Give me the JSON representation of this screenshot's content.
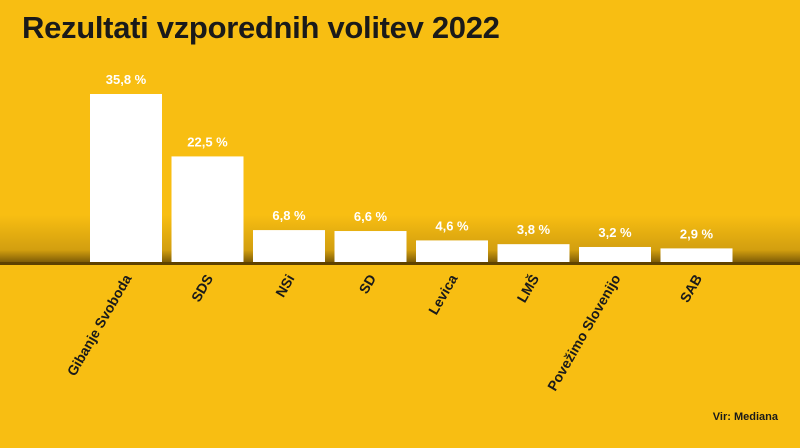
{
  "title": "Rezultati vzporednih volitev 2022",
  "source": "Vir: Mediana",
  "chart_data": {
    "type": "bar",
    "title": "Rezultati vzporednih volitev 2022",
    "categories": [
      "Gibanje Svoboda",
      "SDS",
      "NSi",
      "SD",
      "Levica",
      "LMŠ",
      "Povežimo Slovenijo",
      "SAB"
    ],
    "values": [
      35.8,
      22.5,
      6.8,
      6.6,
      4.6,
      3.8,
      3.2,
      2.9
    ],
    "labels": [
      "35,8 %",
      "22,5 %",
      "6,8 %",
      "6,6 %",
      "4,6 %",
      "3,8 %",
      "3,2 %",
      "2,9 %"
    ],
    "ylim": [
      0,
      35.8
    ],
    "grid": false,
    "legend": "none",
    "colors": {
      "background": "#f8be12",
      "bar": "#ffffff",
      "label": "#ffffff",
      "category": "#1a1a1a"
    }
  }
}
